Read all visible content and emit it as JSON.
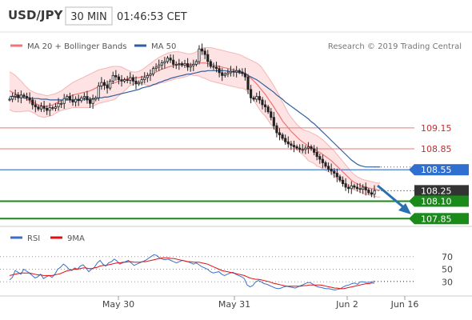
{
  "header": {
    "symbol": "USD/JPY",
    "timeframe": "30 MIN",
    "time": "01:46:53 CET"
  },
  "legend": {
    "ma20_label": "MA 20 + Bollinger Bands",
    "ma50_label": "MA 50",
    "rsi_label": "RSI",
    "rsi_ma_label": "9MA"
  },
  "copyright": "Research © 2019 Trading Central",
  "colors": {
    "red_line": "#f07575",
    "blue_line": "#2f5f9f",
    "green": "#1a8a1a",
    "band_fill": "#fde3e3",
    "candle": "#222222",
    "arrow": "#2a6fb0",
    "current_price_box": "#333333"
  },
  "chart_data": [
    {
      "type": "candlestick",
      "title": "USD/JPY 30 MIN",
      "x_ticks": [
        "May 30",
        "May 31",
        "Jun 2",
        "Jun 16"
      ],
      "levels": [
        {
          "label": "109.15",
          "value": 109.15,
          "style": "resistance",
          "color": "#f07575"
        },
        {
          "label": "108.85",
          "value": 108.85,
          "style": "resistance",
          "color": "#f07575"
        },
        {
          "label": "108.55",
          "value": 108.55,
          "style": "pivot",
          "color": "#2f6fd0"
        },
        {
          "label": "108.25",
          "value": 108.25,
          "style": "current",
          "color": "#333333"
        },
        {
          "label": "108.10",
          "value": 108.1,
          "style": "support",
          "color": "#1a8a1a"
        },
        {
          "label": "107.85",
          "value": 107.85,
          "style": "support",
          "color": "#1a8a1a"
        }
      ],
      "ylim": [
        107.75,
        110.5
      ],
      "close": [
        109.56,
        109.6,
        109.62,
        109.58,
        109.62,
        109.6,
        109.58,
        109.55,
        109.48,
        109.45,
        109.42,
        109.46,
        109.43,
        109.4,
        109.44,
        109.43,
        109.45,
        109.5,
        109.5,
        109.57,
        109.6,
        109.55,
        109.52,
        109.56,
        109.54,
        109.58,
        109.6,
        109.55,
        109.5,
        109.56,
        109.58,
        109.75,
        109.8,
        109.76,
        109.72,
        109.82,
        109.9,
        109.88,
        109.84,
        109.82,
        109.84,
        109.83,
        109.87,
        109.82,
        109.78,
        109.8,
        109.84,
        109.87,
        109.9,
        109.92,
        110.0,
        110.02,
        110.05,
        110.08,
        110.1,
        110.15,
        110.12,
        110.06,
        110.06,
        110.07,
        110.05,
        110.07,
        110.02,
        110.04,
        110.06,
        110.1,
        110.28,
        110.25,
        110.2,
        110.1,
        110.03,
        110.02,
        110.0,
        109.94,
        109.9,
        109.92,
        109.94,
        109.96,
        109.95,
        109.97,
        109.95,
        109.93,
        109.88,
        109.7,
        109.58,
        109.56,
        109.6,
        109.55,
        109.48,
        109.45,
        109.38,
        109.3,
        109.18,
        109.08,
        109.05,
        109.0,
        108.95,
        108.92,
        108.9,
        108.88,
        108.86,
        108.84,
        108.84,
        108.86,
        108.88,
        108.85,
        108.8,
        108.74,
        108.7,
        108.65,
        108.6,
        108.56,
        108.53,
        108.5,
        108.45,
        108.4,
        108.35,
        108.3,
        108.28,
        108.32,
        108.3,
        108.28,
        108.27,
        108.3,
        108.26,
        108.22,
        108.2,
        108.25
      ],
      "ma20": [
        109.68,
        109.66,
        109.64,
        109.62,
        109.6,
        109.58,
        109.56,
        109.54,
        109.52,
        109.5,
        109.48,
        109.47,
        109.46,
        109.46,
        109.47,
        109.48,
        109.5,
        109.52,
        109.54,
        109.56,
        109.58,
        109.6,
        109.62,
        109.63,
        109.64,
        109.65,
        109.66,
        109.67,
        109.68,
        109.7,
        109.72,
        109.74,
        109.75,
        109.76,
        109.77,
        109.78,
        109.79,
        109.8,
        109.82,
        109.83,
        109.84,
        109.85,
        109.86,
        109.86,
        109.87,
        109.87,
        109.88,
        109.89,
        109.9,
        109.91,
        109.93,
        109.95,
        109.97,
        109.99,
        110.0,
        110.02,
        110.03,
        110.04,
        110.05,
        110.05,
        110.05,
        110.05,
        110.05,
        110.06,
        110.06,
        110.07,
        110.08,
        110.08,
        110.08,
        110.07,
        110.06,
        110.05,
        110.04,
        110.03,
        110.02,
        110.01,
        110.0,
        109.99,
        109.98,
        109.97,
        109.96,
        109.95,
        109.93,
        109.9,
        109.86,
        109.82,
        109.78,
        109.73,
        109.68,
        109.63,
        109.57,
        109.51,
        109.45,
        109.38,
        109.32,
        109.25,
        109.2,
        109.15,
        109.1,
        109.06,
        109.02,
        108.98,
        108.95,
        108.92,
        108.89,
        108.87,
        108.85,
        108.82,
        108.8,
        108.77,
        108.74,
        108.71,
        108.68,
        108.64,
        108.6,
        108.56,
        108.52,
        108.48,
        108.44,
        108.4,
        108.37,
        108.35,
        108.33,
        108.31,
        108.3,
        108.29,
        108.28,
        108.27,
        108.26,
        108.26
      ],
      "bb_upper": [
        109.95,
        109.93,
        109.9,
        109.86,
        109.82,
        109.77,
        109.73,
        109.69,
        109.67,
        109.65,
        109.64,
        109.63,
        109.62,
        109.61,
        109.62,
        109.63,
        109.64,
        109.66,
        109.68,
        109.71,
        109.74,
        109.77,
        109.8,
        109.82,
        109.84,
        109.86,
        109.88,
        109.9,
        109.92,
        109.94,
        109.96,
        109.98,
        109.99,
        110.0,
        110.01,
        110.02,
        110.03,
        110.03,
        110.03,
        110.02,
        110.0,
        109.98,
        109.96,
        109.95,
        109.95,
        109.96,
        109.98,
        110.01,
        110.04,
        110.07,
        110.1,
        110.13,
        110.16,
        110.18,
        110.2,
        110.22,
        110.23,
        110.24,
        110.24,
        110.24,
        110.23,
        110.22,
        110.21,
        110.21,
        110.22,
        110.24,
        110.27,
        110.29,
        110.3,
        110.3,
        110.3,
        110.29,
        110.28,
        110.27,
        110.26,
        110.25,
        110.24,
        110.23,
        110.22,
        110.21,
        110.2,
        110.18,
        110.16,
        110.14,
        110.12,
        110.1,
        110.08,
        110.05,
        110.0,
        109.94,
        109.88,
        109.82,
        109.75,
        109.68,
        109.6,
        109.52,
        109.44,
        109.36,
        109.3,
        109.25,
        109.2,
        109.16,
        109.13,
        109.11,
        109.1,
        109.08,
        109.06,
        109.04,
        109.01,
        108.98,
        108.94,
        108.9,
        108.86,
        108.82,
        108.77,
        108.72,
        108.67,
        108.62,
        108.57,
        108.52,
        108.48,
        108.45,
        108.43,
        108.41,
        108.4,
        108.39,
        108.38,
        108.37,
        108.36,
        108.36
      ],
      "bb_lower": [
        109.41,
        109.39,
        109.38,
        109.38,
        109.38,
        109.39,
        109.39,
        109.39,
        109.37,
        109.35,
        109.32,
        109.31,
        109.3,
        109.31,
        109.32,
        109.33,
        109.36,
        109.38,
        109.4,
        109.41,
        109.42,
        109.43,
        109.44,
        109.44,
        109.44,
        109.44,
        109.44,
        109.44,
        109.44,
        109.46,
        109.48,
        109.5,
        109.51,
        109.52,
        109.53,
        109.54,
        109.55,
        109.57,
        109.61,
        109.64,
        109.68,
        109.72,
        109.76,
        109.77,
        109.79,
        109.78,
        109.78,
        109.77,
        109.76,
        109.75,
        109.76,
        109.77,
        109.78,
        109.8,
        109.8,
        109.82,
        109.83,
        109.84,
        109.86,
        109.86,
        109.87,
        109.88,
        109.89,
        109.91,
        109.9,
        109.9,
        109.89,
        109.87,
        109.86,
        109.84,
        109.82,
        109.81,
        109.8,
        109.79,
        109.78,
        109.77,
        109.76,
        109.75,
        109.74,
        109.73,
        109.72,
        109.72,
        109.7,
        109.66,
        109.6,
        109.54,
        109.48,
        109.41,
        109.36,
        109.32,
        109.26,
        109.2,
        109.15,
        109.08,
        109.04,
        108.98,
        108.96,
        108.94,
        108.9,
        108.87,
        108.84,
        108.8,
        108.77,
        108.73,
        108.68,
        108.66,
        108.64,
        108.6,
        108.59,
        108.56,
        108.54,
        108.52,
        108.5,
        108.46,
        108.43,
        108.4,
        108.37,
        108.34,
        108.31,
        108.28,
        108.26,
        108.25,
        108.23,
        108.21,
        108.2,
        108.19,
        108.18,
        108.17,
        108.16,
        108.16
      ],
      "ma50": [
        109.6,
        109.6,
        109.59,
        109.59,
        109.59,
        109.58,
        109.58,
        109.58,
        109.57,
        109.57,
        109.57,
        109.56,
        109.56,
        109.56,
        109.55,
        109.55,
        109.55,
        109.55,
        109.55,
        109.55,
        109.55,
        109.55,
        109.55,
        109.55,
        109.55,
        109.56,
        109.56,
        109.56,
        109.56,
        109.57,
        109.57,
        109.58,
        109.58,
        109.59,
        109.59,
        109.6,
        109.61,
        109.62,
        109.63,
        109.64,
        109.65,
        109.66,
        109.67,
        109.68,
        109.69,
        109.7,
        109.72,
        109.73,
        109.74,
        109.75,
        109.77,
        109.78,
        109.8,
        109.81,
        109.83,
        109.84,
        109.86,
        109.87,
        109.88,
        109.89,
        109.9,
        109.91,
        109.92,
        109.92,
        109.93,
        109.94,
        109.95,
        109.96,
        109.96,
        109.97,
        109.97,
        109.97,
        109.97,
        109.97,
        109.97,
        109.97,
        109.96,
        109.96,
        109.95,
        109.95,
        109.94,
        109.93,
        109.92,
        109.9,
        109.88,
        109.86,
        109.84,
        109.81,
        109.78,
        109.75,
        109.72,
        109.69,
        109.66,
        109.62,
        109.59,
        109.56,
        109.52,
        109.49,
        109.46,
        109.43,
        109.4,
        109.37,
        109.34,
        109.31,
        109.28,
        109.24,
        109.21,
        109.17,
        109.13,
        109.09,
        109.05,
        109.01,
        108.97,
        108.93,
        108.89,
        108.85,
        108.81,
        108.77,
        108.73,
        108.69,
        108.66,
        108.63,
        108.61,
        108.6,
        108.59,
        108.59,
        108.59,
        108.59,
        108.59,
        108.59
      ]
    },
    {
      "type": "line",
      "title": "RSI",
      "ylim": [
        10,
        90
      ],
      "y_ticks": [
        "70",
        "50",
        "30"
      ],
      "series": [
        {
          "name": "RSI",
          "color": "#3a6fc9",
          "values": [
            33,
            37,
            48,
            45,
            42,
            50,
            47,
            44,
            40,
            36,
            38,
            42,
            35,
            38,
            40,
            37,
            42,
            50,
            53,
            58,
            55,
            50,
            48,
            52,
            50,
            55,
            57,
            52,
            46,
            50,
            53,
            60,
            64,
            58,
            55,
            60,
            62,
            66,
            63,
            58,
            60,
            62,
            64,
            60,
            56,
            58,
            60,
            62,
            64,
            67,
            70,
            73,
            72,
            68,
            66,
            65,
            66,
            64,
            62,
            60,
            62,
            64,
            63,
            62,
            60,
            58,
            60,
            57,
            54,
            52,
            50,
            46,
            44,
            45,
            46,
            42,
            40,
            42,
            44,
            45,
            42,
            40,
            38,
            35,
            25,
            22,
            24,
            30,
            32,
            30,
            27,
            26,
            24,
            22,
            20,
            19,
            20,
            22,
            23,
            22,
            21,
            20,
            22,
            24,
            26,
            28,
            29,
            27,
            24,
            22,
            21,
            20,
            19,
            19,
            18,
            17,
            18,
            19,
            22,
            24,
            25,
            27,
            28,
            26,
            30,
            30,
            29,
            29,
            30,
            31
          ]
        },
        {
          "name": "9MA",
          "color": "#e01010",
          "values": [
            40,
            41,
            42,
            43,
            44,
            44,
            44,
            44,
            43,
            42,
            41,
            41,
            40,
            40,
            40,
            40,
            41,
            42,
            43,
            45,
            47,
            48,
            49,
            50,
            50,
            51,
            52,
            52,
            51,
            51,
            52,
            53,
            55,
            56,
            56,
            57,
            58,
            59,
            60,
            60,
            61,
            61,
            62,
            62,
            61,
            61,
            61,
            62,
            62,
            63,
            64,
            65,
            66,
            67,
            68,
            68,
            68,
            67,
            67,
            66,
            65,
            64,
            63,
            62,
            62,
            61,
            61,
            61,
            60,
            59,
            58,
            56,
            54,
            52,
            50,
            48,
            47,
            46,
            45,
            44,
            43,
            42,
            41,
            40,
            38,
            36,
            35,
            34,
            34,
            33,
            32,
            31,
            30,
            28,
            27,
            26,
            25,
            24,
            23,
            23,
            23,
            23,
            23,
            23,
            24,
            24,
            25,
            25,
            25,
            25,
            25,
            24,
            23,
            22,
            21,
            20,
            20,
            19,
            19,
            20,
            21,
            22,
            23,
            24,
            25,
            26,
            27,
            27,
            28,
            28
          ]
        }
      ]
    }
  ]
}
